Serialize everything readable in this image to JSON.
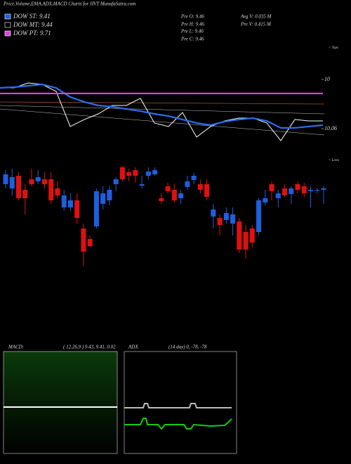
{
  "chart_data": {
    "type": "candlestick",
    "title": "Price,Volume,EMA,ADX,MACD Charts for HVT MunafaSutra.com",
    "legend": [
      {
        "name": "DOW ST: 9.41",
        "color": "#1e5fe0"
      },
      {
        "name": "DOW MT: 9.44",
        "color": "#000000"
      },
      {
        "name": "DOW PT: 9.71",
        "color": "#e040e0"
      }
    ],
    "info": [
      "Pre O: 9.46",
      "Pre H: 9.46",
      "Pre L: 9.46",
      "Pre C: 9.46",
      "Avg V: 0.035 M",
      "Pre V: 0.415 M"
    ],
    "price_panel": {
      "yticks": [
        10,
        10.06
      ],
      "tops_label": "< Tops",
      "series": [
        {
          "name": "Close",
          "color": "#ffffff",
          "values": [
            10.0103,
            10.0103,
            10.0043,
            10.006,
            10.0146,
            10.0574,
            10.0489,
            10.042,
            10.0317,
            10.0317,
            10.0231,
            10.0531,
            10.0574,
            10.0403,
            10.0703,
            10.0574,
            10.0506,
            10.0471,
            10.0471,
            10.0531,
            10.0746,
            10.0489,
            10.0506,
            10.0506
          ]
        },
        {
          "name": "EMA",
          "color": "#2a6ef0",
          "values": [
            10.0103,
            10.0094,
            10.0077,
            10.006,
            10.0103,
            10.0214,
            10.0274,
            10.0317,
            10.0334,
            10.036,
            10.0386,
            10.042,
            10.0446,
            10.0489,
            10.0531,
            10.0557,
            10.0514,
            10.0489,
            10.0471,
            10.0506,
            10.0591,
            10.0591,
            10.0574,
            10.0557
          ]
        },
        {
          "name": "PT",
          "color": "#e040e0",
          "values": [
            10.0171,
            10.0171
          ]
        }
      ]
    },
    "candles": {
      "lows_label": "< Lows",
      "up_color": "#1e5fe0",
      "down_color": "#e01010",
      "open": [
        9.738,
        9.732,
        9.75,
        9.73,
        9.745,
        9.742,
        9.745,
        9.745,
        9.732,
        9.705,
        9.705,
        9.715,
        9.675,
        9.66,
        9.678,
        9.71,
        9.715,
        9.738,
        9.762,
        9.755,
        9.758,
        9.736,
        9.75,
        9.752,
        9.718,
        9.735,
        9.73,
        9.718,
        9.734,
        9.744,
        9.738,
        9.738,
        9.692,
        9.69,
        9.687,
        9.682,
        9.685,
        9.67,
        9.675,
        9.67,
        9.712,
        9.738,
        9.718,
        9.732,
        9.724,
        9.738,
        9.735,
        9.728,
        9.729,
        9.73
      ],
      "high": [
        9.758,
        9.76,
        9.755,
        9.738,
        9.76,
        9.758,
        9.755,
        9.755,
        9.742,
        9.73,
        9.725,
        9.725,
        9.682,
        9.665,
        9.732,
        9.735,
        9.735,
        9.748,
        9.764,
        9.76,
        9.762,
        9.75,
        9.762,
        9.762,
        9.725,
        9.74,
        9.738,
        9.73,
        9.75,
        9.754,
        9.745,
        9.745,
        9.71,
        9.695,
        9.705,
        9.705,
        9.69,
        9.68,
        9.68,
        9.718,
        9.73,
        9.742,
        9.73,
        9.738,
        9.735,
        9.742,
        9.74,
        9.735,
        9.732,
        9.735
      ],
      "low": [
        9.732,
        9.722,
        9.715,
        9.695,
        9.735,
        9.738,
        9.732,
        9.71,
        9.718,
        9.7,
        9.7,
        9.682,
        9.622,
        9.648,
        9.675,
        9.702,
        9.708,
        9.728,
        9.742,
        9.742,
        9.74,
        9.732,
        9.745,
        9.75,
        9.71,
        9.725,
        9.712,
        9.71,
        9.73,
        9.738,
        9.725,
        9.715,
        9.675,
        9.665,
        9.682,
        9.665,
        9.64,
        9.632,
        9.648,
        9.665,
        9.708,
        9.715,
        9.705,
        9.72,
        9.71,
        9.725,
        9.72,
        9.705,
        9.725,
        9.71
      ],
      "close": [
        9.752,
        9.748,
        9.718,
        9.718,
        9.738,
        9.748,
        9.738,
        9.715,
        9.722,
        9.722,
        9.715,
        9.69,
        9.642,
        9.65,
        9.728,
        9.725,
        9.73,
        9.745,
        9.745,
        9.75,
        9.75,
        9.738,
        9.756,
        9.758,
        9.714,
        9.728,
        9.715,
        9.725,
        9.742,
        9.75,
        9.73,
        9.72,
        9.702,
        9.68,
        9.697,
        9.695,
        9.645,
        9.645,
        9.655,
        9.715,
        9.718,
        9.728,
        9.725,
        9.722,
        9.732,
        9.73,
        9.725,
        9.73,
        9.73,
        9.732
      ]
    },
    "macd": {
      "label": "MACD:",
      "params": "( 12,26,9 ) 9.43, 9.41, 0.02"
    },
    "adx": {
      "label": "ADX",
      "params": "(14  day) 0, -78, -78"
    }
  }
}
